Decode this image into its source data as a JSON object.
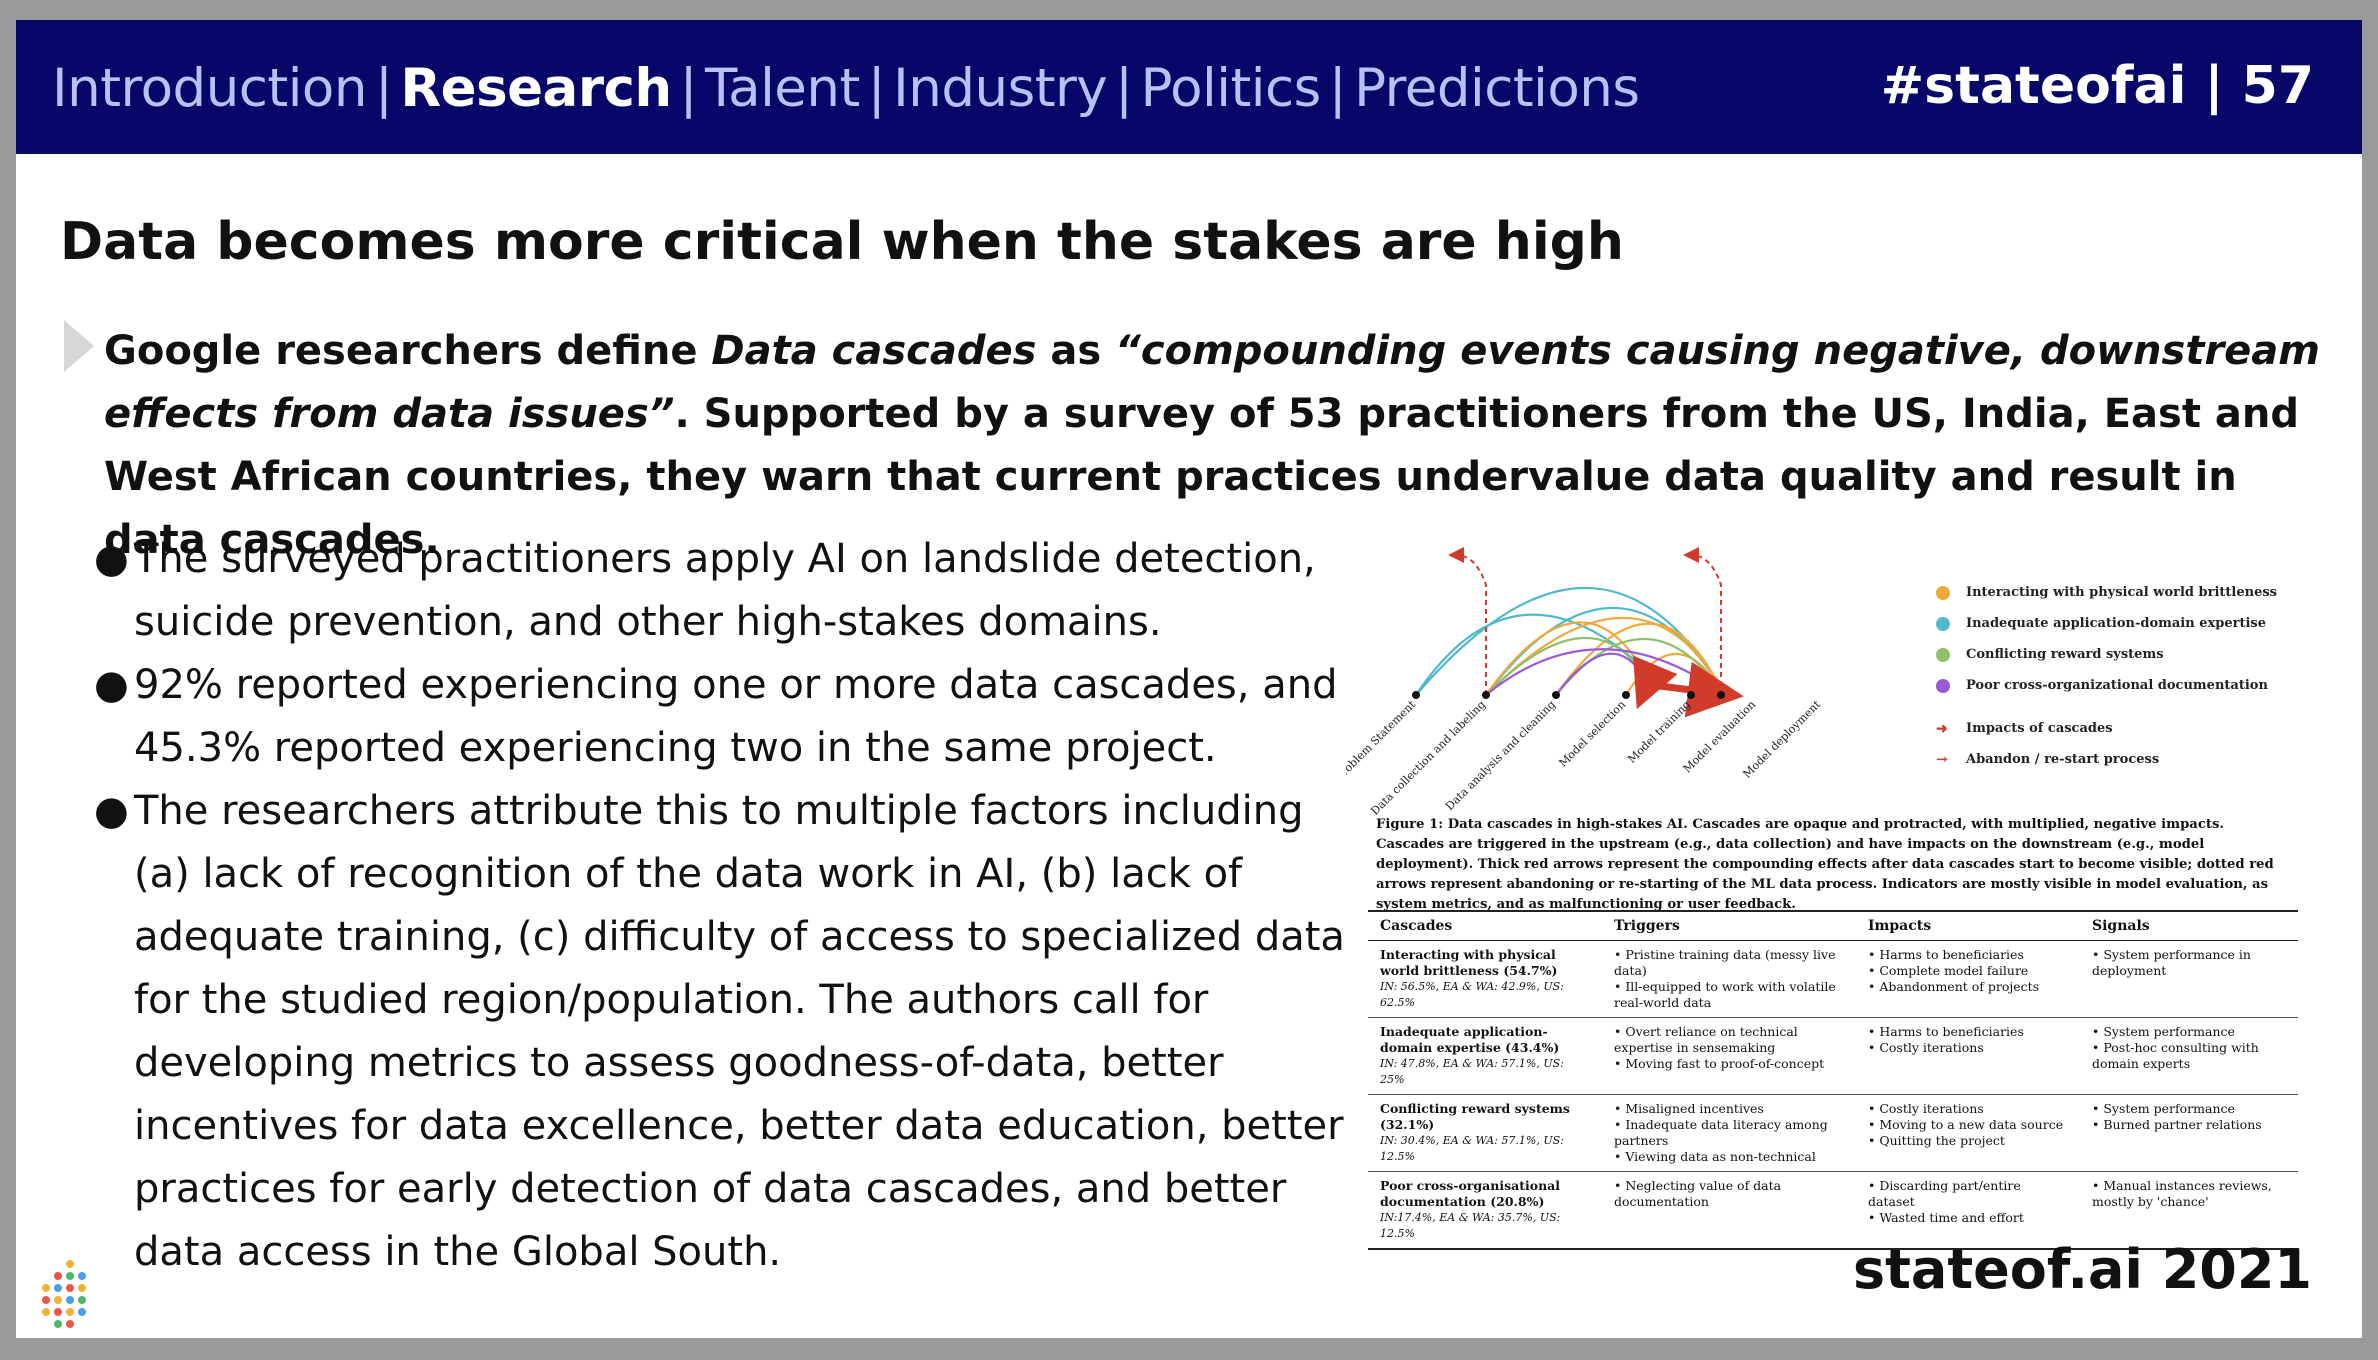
{
  "nav": {
    "items": [
      "Introduction",
      "Research",
      "Talent",
      "Industry",
      "Politics",
      "Predictions"
    ],
    "active": "Research",
    "tag": "#stateofai | 57"
  },
  "title": "Data becomes more critical when the stakes are high",
  "lead": {
    "p1": "Google researchers define ",
    "term": "Data cascades",
    "p2": " as ",
    "quote": "“compounding events causing negative, downstream effects from data issues”",
    "p3": ". Supported by a survey of 53 practitioners from the US, India, East and West African countries, they warn that current practices undervalue data quality and result in data cascades."
  },
  "bullets": [
    "The surveyed practitioners apply AI on landslide detection, suicide prevention, and other high-stakes domains.",
    "92% reported experiencing one or more data cascades, and 45.3% reported experiencing two in the same project.",
    "The researchers attribute this to multiple factors including (a) lack of recognition of the data work in AI, (b) lack of adequate training, (c) difficulty of access to specialized data for the studied region/population. The authors call for developing metrics to assess goodness-of-data, better incentives for data excellence, better data education, better practices for early detection of data cascades, and better data access in the Global South."
  ],
  "figure": {
    "stages": [
      "Problem Statement",
      "Data collection and labeling",
      "Data analysis and cleaning",
      "Model selection",
      "Model training",
      "Model evaluation",
      "Model deployment"
    ],
    "legend": [
      {
        "label": "Interacting with physical world brittleness",
        "color": "#f0a93a"
      },
      {
        "label": "Inadequate application-domain expertise",
        "color": "#4fb8c9"
      },
      {
        "label": "Conflicting reward systems",
        "color": "#8fc16a"
      },
      {
        "label": "Poor cross-organizational documentation",
        "color": "#9b59d6"
      }
    ],
    "legend_arrows": [
      "Impacts of cascades",
      "Abandon / re-start process"
    ],
    "caption": "Figure 1: Data cascades in high-stakes AI. Cascades are opaque and protracted, with multiplied, negative impacts. Cascades are triggered in the upstream (e.g., data collection) and have impacts on the downstream (e.g., model deployment). Thick red arrows represent the compounding effects after data cascades start to become visible; dotted red arrows represent abandoning or re-starting of the ML data process. Indicators are mostly visible in model evaluation, as system metrics, and as malfunctioning or user feedback."
  },
  "table": {
    "headers": [
      "Cascades",
      "Triggers",
      "Impacts",
      "Signals"
    ],
    "rows": [
      {
        "name": "Interacting with physical world brittleness (54.7%)",
        "stat": "IN: 56.5%, EA & WA: 42.9%, US: 62.5%",
        "triggers": [
          "• Pristine training data (messy live data)",
          "• Ill-equipped to work with volatile real-world data"
        ],
        "impacts": [
          "• Harms to beneficiaries",
          "• Complete model failure",
          "• Abandonment of projects"
        ],
        "signals": [
          "• System performance in deployment"
        ]
      },
      {
        "name": "Inadequate application-domain expertise (43.4%)",
        "stat": "IN: 47.8%, EA & WA: 57.1%, US: 25%",
        "triggers": [
          "• Overt reliance on technical expertise in sensemaking",
          "• Moving fast to proof-of-concept"
        ],
        "impacts": [
          "• Harms to beneficiaries",
          "• Costly iterations"
        ],
        "signals": [
          "• System performance",
          "• Post-hoc consulting with domain experts"
        ]
      },
      {
        "name": "Conflicting reward systems (32.1%)",
        "stat": "IN: 30.4%, EA & WA: 57.1%, US: 12.5%",
        "triggers": [
          "• Misaligned incentives",
          "• Inadequate data literacy among partners",
          "• Viewing data as non-technical"
        ],
        "impacts": [
          "• Costly iterations",
          "• Moving to a new data source",
          "• Quitting the project"
        ],
        "signals": [
          "• System performance",
          "• Burned partner relations"
        ]
      },
      {
        "name": "Poor cross-organisational documentation (20.8%)",
        "stat": "IN:17.4%, EA & WA: 35.7%, US: 12.5%",
        "triggers": [
          "• Neglecting value of data documentation"
        ],
        "impacts": [
          "• Discarding part/entire dataset",
          "• Wasted time and effort"
        ],
        "signals": [
          "• Manual instances reviews, mostly by 'chance'"
        ]
      }
    ]
  },
  "footer": "stateof.ai 2021"
}
